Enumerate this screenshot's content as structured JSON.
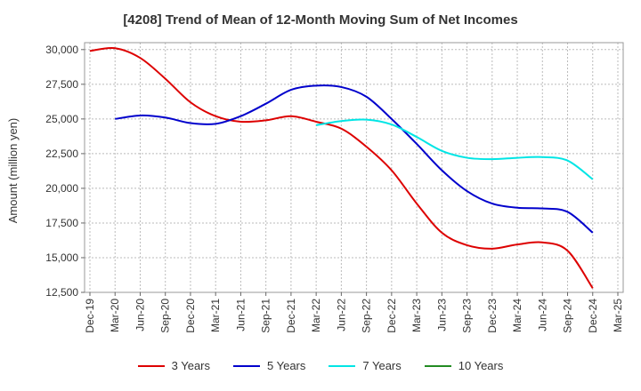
{
  "chart_data": {
    "type": "line",
    "title": "[4208]  Trend of Mean of 12-Month Moving Sum of Net Incomes",
    "xlabel": "",
    "ylabel": "Amount (million yen)",
    "ylim": [
      12500,
      30500
    ],
    "yticks": [
      12500,
      15000,
      17500,
      20000,
      22500,
      25000,
      27500,
      30000
    ],
    "ytick_labels": [
      "12,500",
      "15,000",
      "17,500",
      "20,000",
      "22,500",
      "25,000",
      "27,500",
      "30,000"
    ],
    "xticks": [
      "Dec-19",
      "Mar-20",
      "Jun-20",
      "Sep-20",
      "Dec-20",
      "Mar-21",
      "Jun-21",
      "Sep-21",
      "Dec-21",
      "Mar-22",
      "Jun-22",
      "Sep-22",
      "Dec-22",
      "Mar-23",
      "Jun-23",
      "Sep-23",
      "Dec-23",
      "Mar-24",
      "Jun-24",
      "Sep-24",
      "Dec-24",
      "Mar-25"
    ],
    "grid": true,
    "legend_position": "bottom",
    "series": [
      {
        "name": "3 Years",
        "color": "#dd0000",
        "x": [
          "Dec-19",
          "Mar-20",
          "Jun-20",
          "Sep-20",
          "Dec-20",
          "Mar-21",
          "Jun-21",
          "Sep-21",
          "Dec-21",
          "Mar-22",
          "Jun-22",
          "Sep-22",
          "Dec-22",
          "Mar-23",
          "Jun-23",
          "Sep-23",
          "Dec-23",
          "Mar-24",
          "Jun-24",
          "Sep-24",
          "Dec-24"
        ],
        "values": [
          29900,
          30100,
          29400,
          27900,
          26200,
          25200,
          24800,
          24900,
          25200,
          24800,
          24300,
          23000,
          21300,
          18900,
          16800,
          15900,
          15650,
          15950,
          16100,
          15500,
          12800
        ]
      },
      {
        "name": "5 Years",
        "color": "#0000cc",
        "x": [
          "Mar-20",
          "Jun-20",
          "Sep-20",
          "Dec-20",
          "Mar-21",
          "Jun-21",
          "Sep-21",
          "Dec-21",
          "Mar-22",
          "Jun-22",
          "Sep-22",
          "Dec-22",
          "Mar-23",
          "Jun-23",
          "Sep-23",
          "Dec-23",
          "Mar-24",
          "Jun-24",
          "Sep-24",
          "Dec-24"
        ],
        "values": [
          25000,
          25250,
          25100,
          24700,
          24650,
          25200,
          26100,
          27100,
          27400,
          27300,
          26600,
          25000,
          23200,
          21300,
          19800,
          18900,
          18600,
          18550,
          18300,
          16800
        ]
      },
      {
        "name": "7 Years",
        "color": "#00e5e5",
        "x": [
          "Mar-22",
          "Jun-22",
          "Sep-22",
          "Dec-22",
          "Mar-23",
          "Jun-23",
          "Sep-23",
          "Dec-23",
          "Mar-24",
          "Jun-24",
          "Sep-24",
          "Dec-24"
        ],
        "values": [
          24550,
          24850,
          24950,
          24600,
          23700,
          22700,
          22200,
          22100,
          22200,
          22250,
          22000,
          20650
        ]
      },
      {
        "name": "10 Years",
        "color": "#228b22",
        "x": [],
        "values": []
      }
    ]
  }
}
